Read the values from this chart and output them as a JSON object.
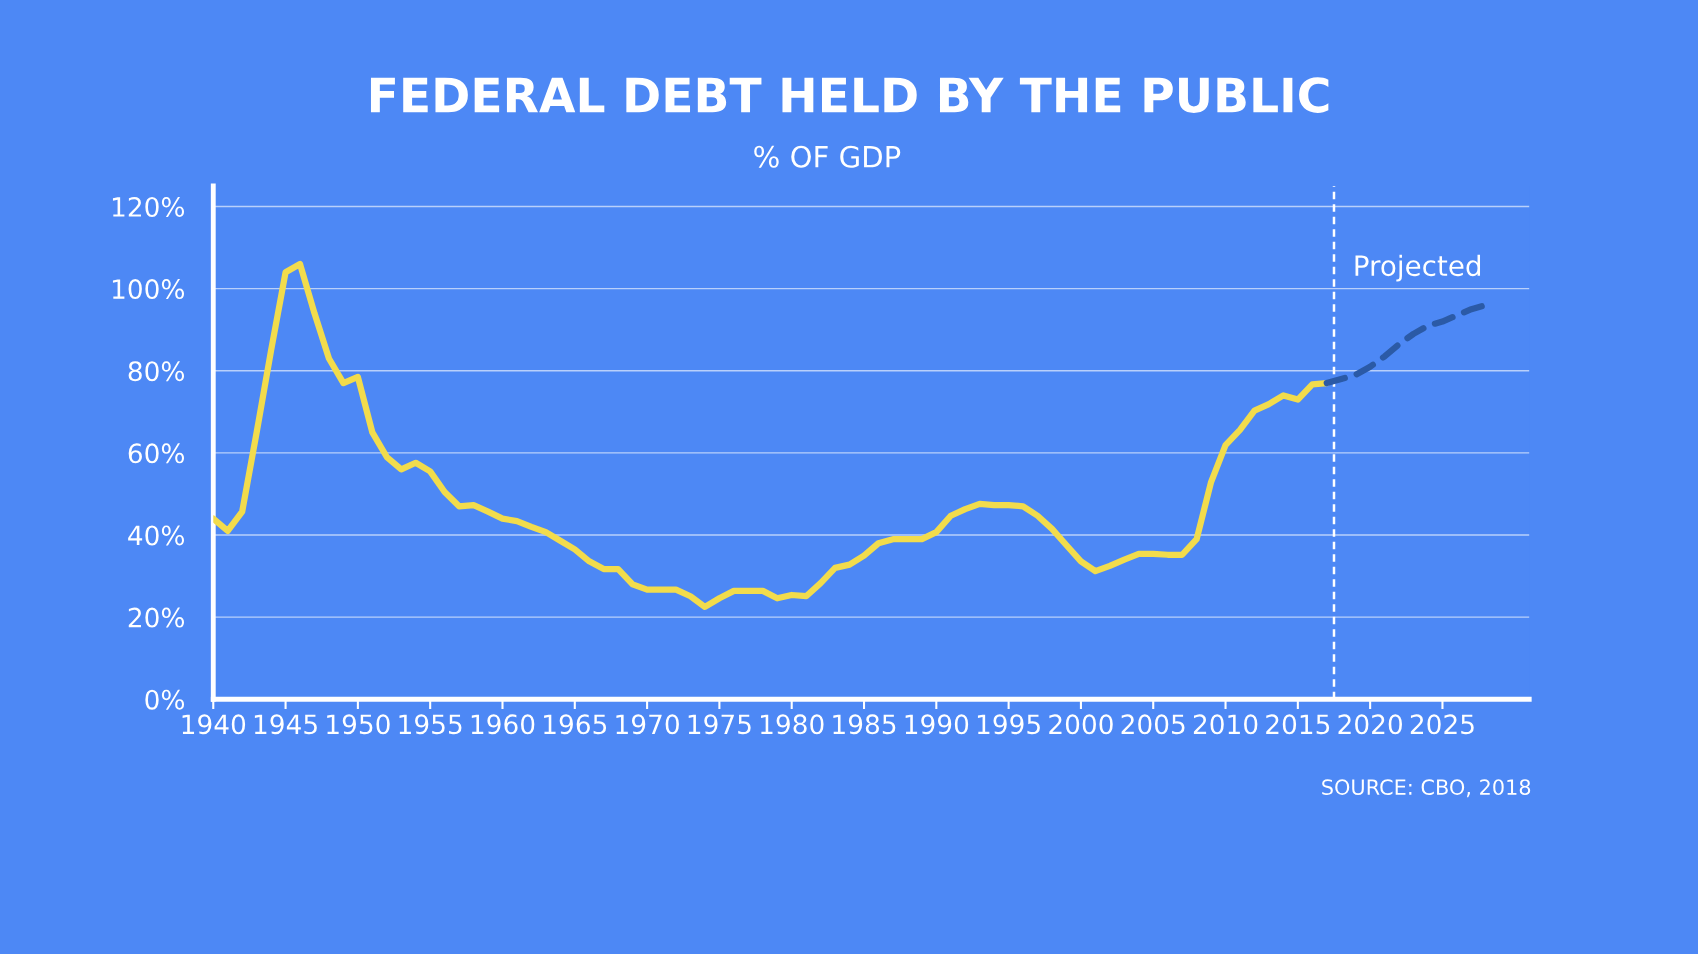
{
  "chart_data": {
    "type": "line",
    "title": "FEDERAL DEBT HELD BY THE PUBLIC",
    "subtitle": "% OF GDP",
    "annotations": [
      "SOURCE: CBO, 2018"
    ],
    "series": [
      {
        "color": "#f2dc4c",
        "line_style": "solid",
        "x": [
          1940,
          1941,
          1942,
          1943,
          1944,
          1945,
          1946,
          1947,
          1948,
          1949,
          1950,
          1951,
          1952,
          1953,
          1954,
          1955,
          1956,
          1957,
          1958,
          1959,
          1960,
          1961,
          1962,
          1963,
          1964,
          1965,
          1966,
          1967,
          1968,
          1969,
          1970,
          1971,
          1972,
          1973,
          1974,
          1975,
          1976,
          1977,
          1978,
          1979,
          1980,
          1981,
          1982,
          1983,
          1984,
          1985,
          1986,
          1987,
          1988,
          1989,
          1990,
          1991,
          1992,
          1993,
          1994,
          1995,
          1996,
          1997,
          1998,
          1999,
          2000,
          2001,
          2002,
          2003,
          2004,
          2005,
          2006,
          2007,
          2008,
          2009,
          2010,
          2011,
          2012,
          2013,
          2014,
          2015,
          2016,
          2017
        ],
        "values": [
          44,
          41,
          45.7,
          65,
          85,
          104,
          106,
          94,
          83,
          77,
          78.5,
          65,
          59,
          56,
          57.6,
          55.5,
          50.5,
          47,
          47.3,
          45.7,
          44,
          43.4,
          42,
          40.7,
          38.6,
          36.5,
          33.6,
          31.7,
          31.7,
          28,
          26.7,
          26.7,
          26.7,
          25.1,
          22.5,
          24.6,
          26.4,
          26.4,
          26.4,
          24.6,
          25.4,
          25.1,
          28.3,
          32,
          32.8,
          35,
          38,
          39,
          39,
          39,
          40.7,
          44.7,
          46.3,
          47.6,
          47.3,
          47.3,
          47,
          44.7,
          41.5,
          37.5,
          33.6,
          31.2,
          32.5,
          34,
          35.4,
          35.4,
          35.2,
          35.2,
          39,
          52.9,
          61.9,
          65.6,
          70.3,
          71.9,
          74,
          73,
          76.7,
          77
        ]
      },
      {
        "color": "#2b5aa6",
        "line_style": "dashed",
        "x": [
          2017,
          2018,
          2019,
          2020,
          2021,
          2022,
          2023,
          2024,
          2025,
          2026,
          2027,
          2028
        ],
        "values": [
          77,
          78,
          79,
          81,
          83.5,
          86.5,
          89,
          91,
          92,
          93.5,
          95,
          96
        ]
      }
    ],
    "ref_lines": [
      {
        "axis": "x",
        "value": 2017.5,
        "label": "Projected",
        "color": "#ffffff",
        "line_style": "dashed"
      }
    ],
    "xlim": [
      1940,
      2031
    ],
    "xticks": [
      1940,
      1945,
      1950,
      1955,
      1960,
      1965,
      1970,
      1975,
      1980,
      1985,
      1990,
      1995,
      2000,
      2005,
      2010,
      2015,
      2020,
      2025
    ],
    "ylim": [
      0,
      125
    ],
    "yticks": [
      {
        "value": 0,
        "label": "0%"
      },
      {
        "value": 20,
        "label": "20%"
      },
      {
        "value": 40,
        "label": "40%"
      },
      {
        "value": 60,
        "label": "60%"
      },
      {
        "value": 80,
        "label": "80%"
      },
      {
        "value": 100,
        "label": "100%"
      },
      {
        "value": 120,
        "label": "120%"
      }
    ],
    "grid": "y",
    "legend": false,
    "marker": "none"
  }
}
